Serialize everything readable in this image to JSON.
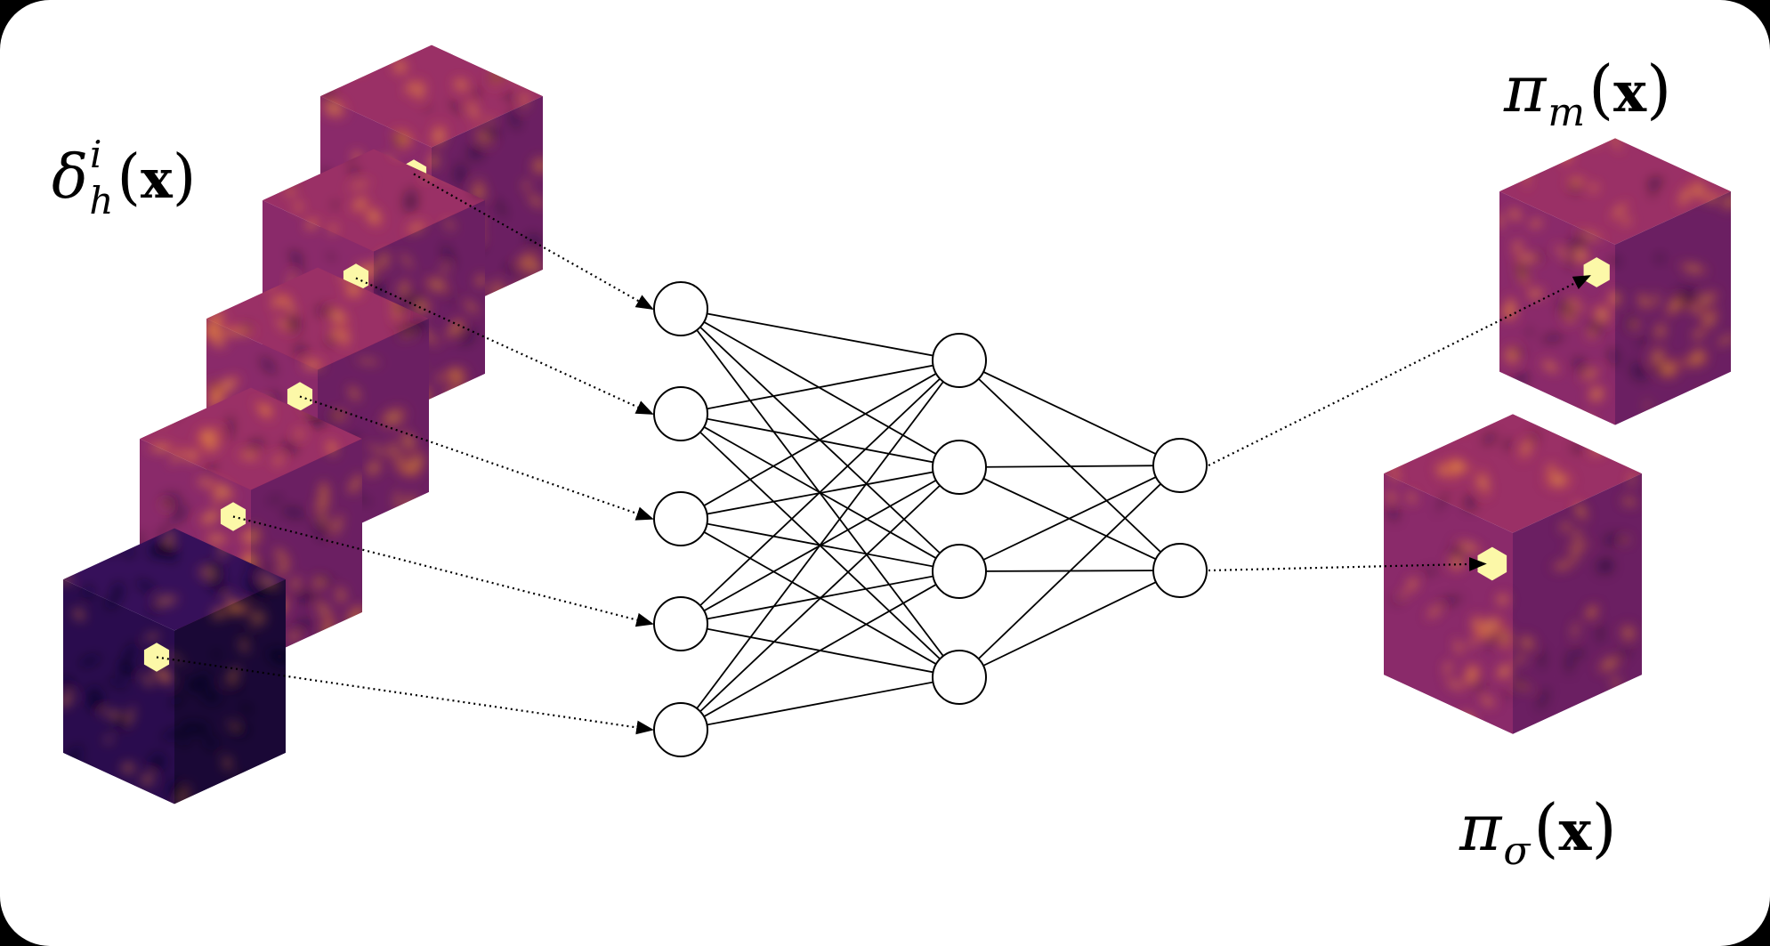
{
  "labels": {
    "input": {
      "base": "δ",
      "sup": "i",
      "sub": "h",
      "arg": "x"
    },
    "output_mean": {
      "base": "π",
      "sub": "m",
      "arg": "x"
    },
    "output_sigma": {
      "base": "π",
      "sub": "σ",
      "arg": "x"
    }
  },
  "network": {
    "layers": [
      5,
      4,
      2
    ]
  },
  "input_cubes": 5,
  "output_cubes": 2,
  "colors": {
    "background": "#ffffff",
    "frame": "#000000",
    "cube_dark": "#1a0a38",
    "cube_mid": "#7a1f6e",
    "cube_hot": "#f08428",
    "highlight_voxel": "#fcf8a8",
    "lines": "#000000"
  },
  "colormap": "inferno"
}
